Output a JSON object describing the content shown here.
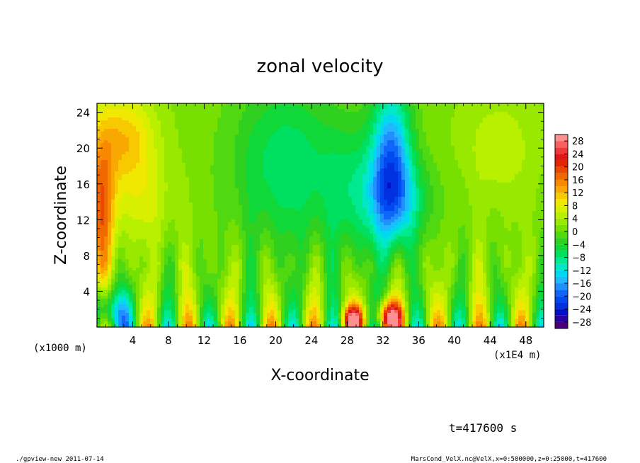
{
  "chart_data": {
    "type": "heatmap",
    "title": "zonal velocity",
    "xlabel": "X-coordinate",
    "ylabel": "Z-coordinate",
    "x_unit_label": "(x1E4 m)",
    "y_unit_label": "(x1000 m)",
    "x_range": [
      0,
      50
    ],
    "y_range": [
      0,
      25
    ],
    "x_ticks": [
      4,
      8,
      12,
      16,
      20,
      24,
      28,
      32,
      36,
      40,
      44,
      48
    ],
    "y_ticks": [
      4,
      8,
      12,
      16,
      20,
      24
    ],
    "colorbar": {
      "levels": [
        -30,
        -28,
        -26,
        -24,
        -22,
        -20,
        -18,
        -16,
        -14,
        -12,
        -10,
        -8,
        -6,
        -4,
        -2,
        0,
        2,
        4,
        6,
        8,
        10,
        12,
        14,
        16,
        18,
        20,
        22,
        24,
        26,
        28,
        30
      ],
      "tick_labels": [
        "28",
        "24",
        "20",
        "16",
        "12",
        "8",
        "4",
        "0",
        "−4",
        "−8",
        "−12",
        "−16",
        "−20",
        "−24",
        "−28"
      ],
      "tick_values": [
        28,
        24,
        20,
        16,
        12,
        8,
        4,
        0,
        -4,
        -8,
        -12,
        -16,
        -20,
        -24,
        -28
      ],
      "colors": [
        "#4a007a",
        "#2a00a0",
        "#0010c8",
        "#0030e0",
        "#0048f0",
        "#1066f8",
        "#2090ff",
        "#20b8ff",
        "#00d8f0",
        "#00e8c8",
        "#00e890",
        "#00e060",
        "#10d838",
        "#30d020",
        "#50d810",
        "#78e000",
        "#98e800",
        "#b8f000",
        "#d8f000",
        "#f0e800",
        "#f8c800",
        "#f8a800",
        "#f88800",
        "#f06800",
        "#e84800",
        "#e02800",
        "#e01818",
        "#f03838",
        "#f86060",
        "#fc9090"
      ]
    },
    "features": [
      {
        "desc": "positive core",
        "x": 0.6,
        "z": 12,
        "value": 18
      },
      {
        "desc": "positive upper-left",
        "x": 2.5,
        "z": 22,
        "value": 12
      },
      {
        "desc": "negative core",
        "x": 33,
        "z": 18,
        "value": -18
      },
      {
        "desc": "positive surface",
        "x": 28.5,
        "z": 0.5,
        "value": 20
      },
      {
        "desc": "positive surface",
        "x": 32.5,
        "z": 0.6,
        "value": 24
      },
      {
        "desc": "negative surface",
        "x": 1,
        "z": 1,
        "value": -16
      }
    ]
  },
  "annotations": {
    "time": "t=417600 s",
    "footer_left": "./gpview-new  2011-07-14",
    "footer_right": "MarsCond_VelX.nc@VelX,x=0:500000,z=0:25000,t=417600"
  }
}
